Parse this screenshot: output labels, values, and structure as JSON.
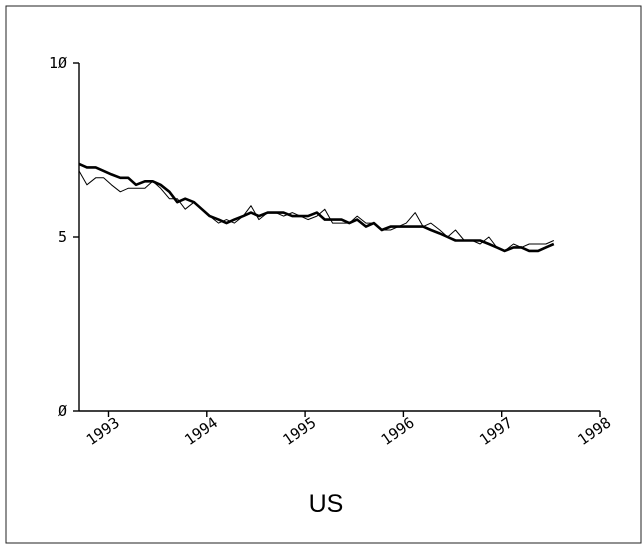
{
  "chart_data": {
    "type": "line",
    "title": "US",
    "xlabel": "",
    "ylabel": "",
    "ylim": [
      0,
      10
    ],
    "xlim": [
      1992.7,
      1998.0
    ],
    "y_ticks": [
      0,
      5,
      10
    ],
    "y_tick_labels": [
      "Ø",
      "5",
      "1Ø"
    ],
    "x_ticks": [
      1993,
      1994,
      1995,
      1996,
      1997,
      1998
    ],
    "x_tick_labels": [
      "1993",
      "1994",
      "1995",
      "1996",
      "1997",
      "1998"
    ],
    "grid": false,
    "legend": "none",
    "series": [
      {
        "style": "thin",
        "color": "#000000",
        "x": [
          1992.7,
          1992.78,
          1992.87,
          1992.95,
          1993.03,
          1993.12,
          1993.2,
          1993.28,
          1993.37,
          1993.45,
          1993.53,
          1993.62,
          1993.7,
          1993.78,
          1993.87,
          1993.95,
          1994.03,
          1994.12,
          1994.2,
          1994.28,
          1994.37,
          1994.45,
          1994.53,
          1994.62,
          1994.7,
          1994.78,
          1994.87,
          1994.95,
          1995.03,
          1995.12,
          1995.2,
          1995.28,
          1995.37,
          1995.45,
          1995.53,
          1995.62,
          1995.7,
          1995.78,
          1995.87,
          1995.95,
          1996.03,
          1996.12,
          1996.2,
          1996.28,
          1996.37,
          1996.45,
          1996.53,
          1996.62,
          1996.7,
          1996.78,
          1996.87,
          1996.95,
          1997.03,
          1997.12,
          1997.2,
          1997.28,
          1997.37,
          1997.45,
          1997.53
        ],
        "y": [
          6.9,
          6.5,
          6.7,
          6.7,
          6.5,
          6.3,
          6.4,
          6.4,
          6.4,
          6.6,
          6.4,
          6.1,
          6.1,
          5.8,
          6.0,
          5.8,
          5.6,
          5.4,
          5.5,
          5.4,
          5.6,
          5.9,
          5.5,
          5.7,
          5.7,
          5.6,
          5.7,
          5.6,
          5.5,
          5.6,
          5.8,
          5.4,
          5.4,
          5.4,
          5.6,
          5.4,
          5.4,
          5.2,
          5.2,
          5.3,
          5.4,
          5.7,
          5.3,
          5.4,
          5.2,
          5.0,
          5.2,
          4.9,
          4.9,
          4.8,
          5.0,
          4.7,
          4.6,
          4.8,
          4.7,
          4.8,
          4.8,
          4.8,
          4.9
        ]
      },
      {
        "style": "thick",
        "color": "#000000",
        "x": [
          1992.7,
          1992.78,
          1992.87,
          1992.95,
          1993.03,
          1993.12,
          1993.2,
          1993.28,
          1993.37,
          1993.45,
          1993.53,
          1993.62,
          1993.7,
          1993.78,
          1993.87,
          1993.95,
          1994.03,
          1994.12,
          1994.2,
          1994.28,
          1994.37,
          1994.45,
          1994.53,
          1994.62,
          1994.7,
          1994.78,
          1994.87,
          1994.95,
          1995.03,
          1995.12,
          1995.2,
          1995.28,
          1995.37,
          1995.45,
          1995.53,
          1995.62,
          1995.7,
          1995.78,
          1995.87,
          1995.95,
          1996.03,
          1996.12,
          1996.2,
          1996.28,
          1996.37,
          1996.45,
          1996.53,
          1996.62,
          1996.7,
          1996.78,
          1996.87,
          1996.95,
          1997.03,
          1997.12,
          1997.2,
          1997.28,
          1997.37,
          1997.45,
          1997.53
        ],
        "y": [
          7.1,
          7.0,
          7.0,
          6.9,
          6.8,
          6.7,
          6.7,
          6.5,
          6.6,
          6.6,
          6.5,
          6.3,
          6.0,
          6.1,
          6.0,
          5.8,
          5.6,
          5.5,
          5.4,
          5.5,
          5.6,
          5.7,
          5.6,
          5.7,
          5.7,
          5.7,
          5.6,
          5.6,
          5.6,
          5.7,
          5.5,
          5.5,
          5.5,
          5.4,
          5.5,
          5.3,
          5.4,
          5.2,
          5.3,
          5.3,
          5.3,
          5.3,
          5.3,
          5.2,
          5.1,
          5.0,
          4.9,
          4.9,
          4.9,
          4.9,
          4.8,
          4.7,
          4.6,
          4.7,
          4.7,
          4.6,
          4.6,
          4.7,
          4.8
        ]
      }
    ]
  }
}
